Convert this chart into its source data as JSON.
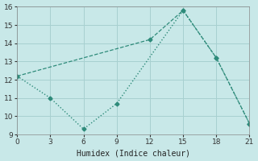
{
  "xlabel": "Humidex (Indice chaleur)",
  "x_line1": [
    0,
    12,
    15,
    18,
    21
  ],
  "y_line1": [
    12.2,
    14.2,
    15.8,
    13.2,
    9.6
  ],
  "x_line2": [
    0,
    3,
    6,
    9,
    15,
    18,
    21
  ],
  "y_line2": [
    12.2,
    11.0,
    9.3,
    10.7,
    15.8,
    13.2,
    9.6
  ],
  "line_color": "#2e8b7a",
  "bg_color": "#c8e8e8",
  "grid_color": "#a8d0d0",
  "xlim": [
    0,
    21
  ],
  "ylim": [
    9,
    16
  ],
  "xticks": [
    0,
    3,
    6,
    9,
    12,
    15,
    18,
    21
  ],
  "yticks": [
    9,
    10,
    11,
    12,
    13,
    14,
    15,
    16
  ]
}
